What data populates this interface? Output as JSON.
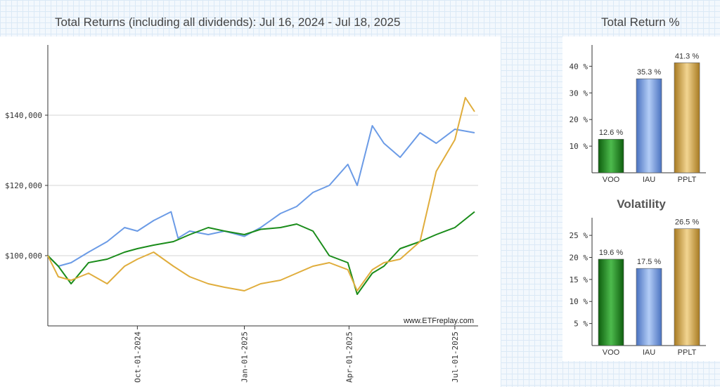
{
  "header": {
    "main_title": "Total Returns (including all dividends): Jul 16, 2024 - Jul 18, 2025",
    "side_title": "Total Return %"
  },
  "watermark": "www.ETFreplay.com",
  "colors": {
    "VOO": "#1a8c1a",
    "IAU": "#6b9be6",
    "PPLT": "#e0ad3c"
  },
  "chart_data": [
    {
      "type": "line",
      "title": "Total Returns (including all dividends): Jul 16, 2024 - Jul 18, 2025",
      "ylim": [
        80000,
        160000
      ],
      "y_ticks": [
        100000,
        120000,
        140000
      ],
      "y_tick_labels": [
        "$100,000",
        "$120,000",
        "$140,000"
      ],
      "x_ticks": [
        "Oct-01-2024",
        "Jan-01-2025",
        "Apr-01-2025",
        "Jul-01-2025"
      ],
      "grid": true,
      "series": [
        {
          "name": "IAU",
          "color": "#6b9be6",
          "x": [
            "2024-07-16",
            "2024-07-25",
            "2024-08-05",
            "2024-08-20",
            "2024-09-05",
            "2024-09-20",
            "2024-10-01",
            "2024-10-15",
            "2024-10-30",
            "2024-11-05",
            "2024-11-15",
            "2024-12-01",
            "2024-12-15",
            "2025-01-01",
            "2025-01-15",
            "2025-02-01",
            "2025-02-15",
            "2025-03-01",
            "2025-03-15",
            "2025-03-31",
            "2025-04-08",
            "2025-04-21",
            "2025-05-01",
            "2025-05-15",
            "2025-06-01",
            "2025-06-15",
            "2025-07-01",
            "2025-07-18"
          ],
          "values": [
            100000,
            97000,
            98000,
            101000,
            104000,
            108000,
            107000,
            110000,
            112500,
            105000,
            107000,
            106000,
            107000,
            105500,
            108000,
            112000,
            114000,
            118000,
            120000,
            126000,
            120000,
            137000,
            132000,
            128000,
            135000,
            132000,
            136000,
            135000
          ]
        },
        {
          "name": "VOO",
          "color": "#1a8c1a",
          "x": [
            "2024-07-16",
            "2024-07-25",
            "2024-08-05",
            "2024-08-20",
            "2024-09-05",
            "2024-09-20",
            "2024-10-01",
            "2024-10-15",
            "2024-11-01",
            "2024-11-15",
            "2024-12-01",
            "2024-12-15",
            "2025-01-01",
            "2025-01-15",
            "2025-02-01",
            "2025-02-15",
            "2025-03-01",
            "2025-03-15",
            "2025-03-31",
            "2025-04-08",
            "2025-04-21",
            "2025-05-01",
            "2025-05-15",
            "2025-06-01",
            "2025-06-15",
            "2025-07-01",
            "2025-07-18"
          ],
          "values": [
            100000,
            97000,
            92000,
            98000,
            99000,
            101000,
            102000,
            103000,
            104000,
            106000,
            108000,
            107000,
            106000,
            107500,
            108000,
            109000,
            107000,
            100000,
            98000,
            89000,
            95000,
            97000,
            102000,
            104000,
            106000,
            108000,
            112500
          ]
        },
        {
          "name": "PPLT",
          "color": "#e0ad3c",
          "x": [
            "2024-07-16",
            "2024-07-25",
            "2024-08-05",
            "2024-08-20",
            "2024-09-05",
            "2024-09-20",
            "2024-10-01",
            "2024-10-15",
            "2024-11-01",
            "2024-11-15",
            "2024-12-01",
            "2024-12-15",
            "2025-01-01",
            "2025-01-15",
            "2025-02-01",
            "2025-02-15",
            "2025-03-01",
            "2025-03-15",
            "2025-03-31",
            "2025-04-08",
            "2025-04-21",
            "2025-05-01",
            "2025-05-15",
            "2025-06-01",
            "2025-06-15",
            "2025-07-01",
            "2025-07-10",
            "2025-07-18"
          ],
          "values": [
            100000,
            94000,
            93000,
            95000,
            92000,
            97000,
            99000,
            101000,
            97000,
            94000,
            92000,
            91000,
            90000,
            92000,
            93000,
            95000,
            97000,
            98000,
            96000,
            90000,
            96000,
            98000,
            99000,
            104000,
            124000,
            133000,
            145000,
            141000
          ]
        }
      ]
    },
    {
      "type": "bar",
      "title": "Total Return %",
      "categories": [
        "VOO",
        "IAU",
        "PPLT"
      ],
      "values": [
        12.6,
        35.3,
        41.3
      ],
      "value_labels": [
        "12.6 %",
        "35.3 %",
        "41.3 %"
      ],
      "ylim": [
        0,
        48
      ],
      "y_ticks": [
        10,
        20,
        30,
        40
      ],
      "y_tick_labels": [
        "10 %",
        "20 %",
        "30 %",
        "40 %"
      ]
    },
    {
      "type": "bar",
      "title": "Volatility",
      "categories": [
        "VOO",
        "IAU",
        "PPLT"
      ],
      "values": [
        19.6,
        17.5,
        26.5
      ],
      "value_labels": [
        "19.6 %",
        "17.5 %",
        "26.5 %"
      ],
      "ylim": [
        0,
        29
      ],
      "y_ticks": [
        5,
        10,
        15,
        20,
        25
      ],
      "y_tick_labels": [
        "5 %",
        "10 %",
        "15 %",
        "20 %",
        "25 %"
      ]
    }
  ]
}
